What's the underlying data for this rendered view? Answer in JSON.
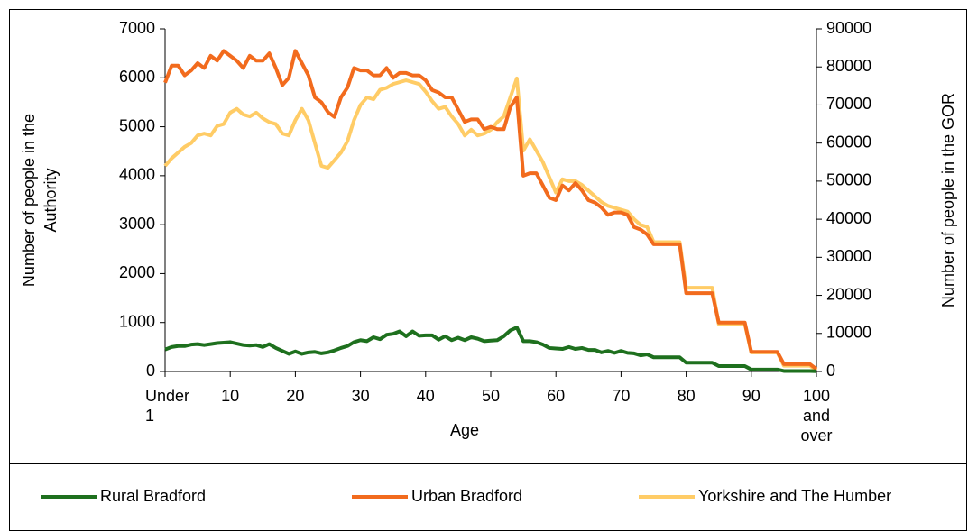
{
  "chart_data": {
    "type": "line",
    "xlabel": "Age",
    "ylabel": "Number of people in the Authority",
    "y2label": "Number of people in the GOR",
    "categories": [
      "Under 1",
      null,
      null,
      null,
      null,
      null,
      null,
      null,
      null,
      null,
      "10",
      null,
      null,
      null,
      null,
      null,
      null,
      null,
      null,
      null,
      "20",
      null,
      null,
      null,
      null,
      null,
      null,
      null,
      null,
      null,
      "30",
      null,
      null,
      null,
      null,
      null,
      null,
      null,
      null,
      null,
      "40",
      null,
      null,
      null,
      null,
      null,
      null,
      null,
      null,
      null,
      "50",
      null,
      null,
      null,
      null,
      null,
      null,
      null,
      null,
      null,
      "60",
      null,
      null,
      null,
      null,
      null,
      null,
      null,
      null,
      null,
      "70",
      null,
      null,
      null,
      null,
      null,
      null,
      null,
      null,
      null,
      "80",
      null,
      null,
      null,
      null,
      null,
      null,
      null,
      null,
      null,
      "90",
      null,
      null,
      null,
      null,
      null,
      null,
      null,
      null,
      null,
      "100 and over"
    ],
    "series": [
      {
        "name": "Rural Bradford",
        "color": "#1e701e",
        "values": [
          450,
          500,
          520,
          520,
          550,
          560,
          540,
          560,
          580,
          590,
          600,
          570,
          540,
          530,
          540,
          500,
          560,
          480,
          420,
          360,
          410,
          360,
          390,
          400,
          370,
          390,
          430,
          480,
          520,
          600,
          640,
          620,
          700,
          660,
          750,
          770,
          820,
          720,
          820,
          730,
          740,
          740,
          650,
          720,
          640,
          690,
          640,
          700,
          670,
          620,
          630,
          640,
          720,
          840,
          900,
          620,
          620,
          600,
          550,
          480,
          470,
          460,
          500,
          460,
          480,
          440,
          440,
          390,
          420,
          380,
          420,
          380,
          370,
          330,
          350,
          290,
          290,
          290,
          290,
          290,
          180,
          180,
          180,
          180,
          180,
          110,
          110,
          110,
          110,
          110,
          40,
          40,
          40,
          40,
          40,
          10,
          10,
          10,
          10,
          10,
          5
        ]
      },
      {
        "name": "Urban Bradford",
        "color": "#f26b1d",
        "values": [
          5900,
          6250,
          6250,
          6050,
          6150,
          6300,
          6200,
          6450,
          6350,
          6550,
          6450,
          6350,
          6200,
          6450,
          6350,
          6350,
          6500,
          6200,
          5850,
          6000,
          6550,
          6300,
          6050,
          5600,
          5500,
          5300,
          5200,
          5600,
          5800,
          6200,
          6150,
          6150,
          6050,
          6050,
          6200,
          6000,
          6100,
          6100,
          6050,
          6050,
          5950,
          5750,
          5700,
          5600,
          5600,
          5350,
          5100,
          5150,
          5150,
          4950,
          5000,
          4950,
          4950,
          5400,
          5600,
          4000,
          4050,
          4050,
          3800,
          3550,
          3500,
          3800,
          3700,
          3850,
          3700,
          3500,
          3450,
          3350,
          3200,
          3250,
          3250,
          3200,
          2950,
          2900,
          2800,
          2600,
          2600,
          2600,
          2600,
          2600,
          1600,
          1600,
          1600,
          1600,
          1600,
          1000,
          1000,
          1000,
          1000,
          1000,
          400,
          400,
          400,
          400,
          400,
          150,
          150,
          150,
          150,
          150,
          50
        ]
      },
      {
        "name": "Yorkshire and The Humber",
        "color": "#ffcc66",
        "axis": "y2",
        "values": [
          54000,
          56000,
          57500,
          59000,
          60000,
          62000,
          62500,
          62000,
          64500,
          65000,
          68000,
          69000,
          67500,
          67000,
          68000,
          66500,
          65500,
          65000,
          62500,
          62000,
          66000,
          69000,
          66000,
          60000,
          54000,
          53500,
          55500,
          57500,
          60500,
          66000,
          70000,
          72000,
          71500,
          74000,
          74500,
          75500,
          76000,
          76500,
          76000,
          75500,
          73500,
          71000,
          69000,
          69500,
          67000,
          65000,
          62000,
          63500,
          62000,
          62500,
          63500,
          65500,
          67000,
          72000,
          77000,
          58000,
          61000,
          58000,
          55000,
          51000,
          47000,
          50500,
          50000,
          50000,
          49000,
          47500,
          46000,
          44500,
          43500,
          43000,
          42500,
          42000,
          40000,
          38500,
          38000,
          34000,
          34000,
          34000,
          34000,
          34000,
          22000,
          22000,
          22000,
          22000,
          22000,
          12500,
          12500,
          12500,
          12500,
          12500,
          5000,
          5000,
          5000,
          5000,
          5000,
          1500,
          1500,
          1500,
          1500,
          1500,
          300
        ]
      }
    ],
    "ylim": [
      0,
      7000
    ],
    "yticks": [
      0,
      1000,
      2000,
      3000,
      4000,
      5000,
      6000,
      7000
    ],
    "y2lim": [
      0,
      90000
    ],
    "y2ticks": [
      0,
      10000,
      20000,
      30000,
      40000,
      50000,
      60000,
      70000,
      80000,
      90000
    ],
    "grid": false,
    "legend": "bottom"
  }
}
